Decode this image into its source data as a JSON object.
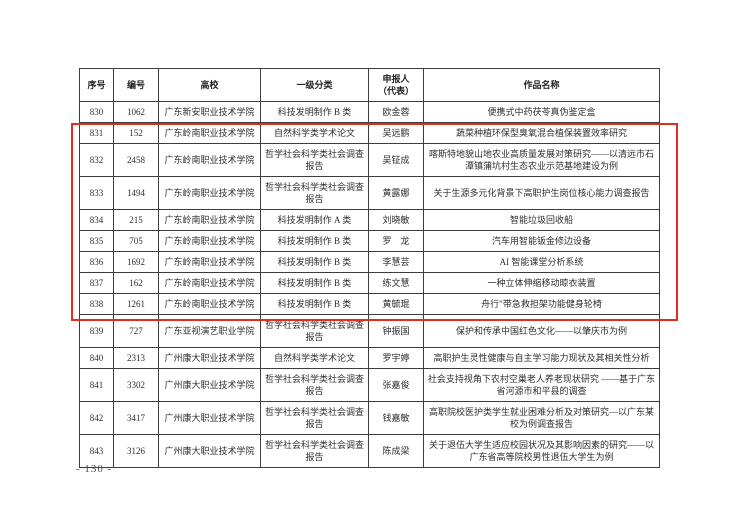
{
  "document": {
    "page_number": "- 130 -",
    "highlight_color": "#e02d22"
  },
  "table": {
    "columns": [
      {
        "key": "seq",
        "label": "序号"
      },
      {
        "key": "code",
        "label": "编号"
      },
      {
        "key": "school",
        "label": "高校"
      },
      {
        "key": "category",
        "label": "一级分类"
      },
      {
        "key": "applicant",
        "label": "申报人\n（代表）"
      },
      {
        "key": "work",
        "label": "作品名称"
      }
    ],
    "rows": [
      {
        "seq": "830",
        "code": "1062",
        "school": "广东新安职业技术学院",
        "category": "科技发明制作 B 类",
        "applicant": "欧金蓉",
        "work": "便携式中药茯苓真伪鉴定盒",
        "highlighted": false
      },
      {
        "seq": "831",
        "code": "152",
        "school": "广东岭南职业技术学院",
        "category": "自然科学类学术论文",
        "applicant": "吴远鹏",
        "work": "蔬菜种植环保型臭氧混合植保装置效率研究",
        "highlighted": true
      },
      {
        "seq": "832",
        "code": "2458",
        "school": "广东岭南职业技术学院",
        "category": "哲学社会科学类社会调查报告",
        "applicant": "吴钲成",
        "work": "喀斯特地貌山地农业高质量发展对策研究——以清远市石潭镇蒲坑村生态农业示范基地建设为例",
        "highlighted": true
      },
      {
        "seq": "833",
        "code": "1494",
        "school": "广东岭南职业技术学院",
        "category": "哲学社会科学类社会调查报告",
        "applicant": "黄露娜",
        "work": "关于生源多元化背景下高职护生岗位核心能力调查报告",
        "highlighted": true
      },
      {
        "seq": "834",
        "code": "215",
        "school": "广东岭南职业技术学院",
        "category": "科技发明制作 A 类",
        "applicant": "刘晓敏",
        "work": "智能垃圾回收船",
        "highlighted": true
      },
      {
        "seq": "835",
        "code": "705",
        "school": "广东岭南职业技术学院",
        "category": "科技发明制作 B 类",
        "applicant": "罗　龙",
        "work": "汽车用智能钣金修边设备",
        "highlighted": true
      },
      {
        "seq": "836",
        "code": "1692",
        "school": "广东岭南职业技术学院",
        "category": "科技发明制作 B 类",
        "applicant": "李慧芸",
        "work": "AI 智能课堂分析系统",
        "highlighted": true
      },
      {
        "seq": "837",
        "code": "162",
        "school": "广东岭南职业技术学院",
        "category": "科技发明制作 B 类",
        "applicant": "练文慧",
        "work": "一种立体伸缩移动晾衣装置",
        "highlighted": true
      },
      {
        "seq": "838",
        "code": "1261",
        "school": "广东岭南职业技术学院",
        "category": "科技发明制作 B 类",
        "applicant": "黄毓琨",
        "work": "舟行\"带急救担架功能健身轮椅",
        "highlighted": true
      },
      {
        "seq": "839",
        "code": "727",
        "school": "广东亚视演艺职业学院",
        "category": "哲学社会科学类社会调查报告",
        "applicant": "钟振国",
        "work": "保护和传承中国红色文化——以肇庆市为例",
        "highlighted": false
      },
      {
        "seq": "840",
        "code": "2313",
        "school": "广州康大职业技术学院",
        "category": "自然科学类学术论文",
        "applicant": "罗宇婷",
        "work": "高职护生灵性健康与自主学习能力现状及其相关性分析",
        "highlighted": false
      },
      {
        "seq": "841",
        "code": "3302",
        "school": "广州康大职业技术学院",
        "category": "哲学社会科学类社会调查报告",
        "applicant": "张嘉俊",
        "work": "社会支持视角下农村空巢老人养老现状研究 ——基于广东省河源市和平县的调查",
        "highlighted": false
      },
      {
        "seq": "842",
        "code": "3417",
        "school": "广州康大职业技术学院",
        "category": "哲学社会科学类社会调查报告",
        "applicant": "钱嘉敏",
        "work": "高职院校医护类学生就业困难分析及对策研究—以广东某校为例调查报告",
        "highlighted": false
      },
      {
        "seq": "843",
        "code": "3126",
        "school": "广州康大职业技术学院",
        "category": "哲学社会科学类社会调查报告",
        "applicant": "陈成梁",
        "work": "关于退伍大学生适应校园状况及其影响因素的研究——以广东省高等院校男性退伍大学生为例",
        "highlighted": false
      }
    ]
  }
}
